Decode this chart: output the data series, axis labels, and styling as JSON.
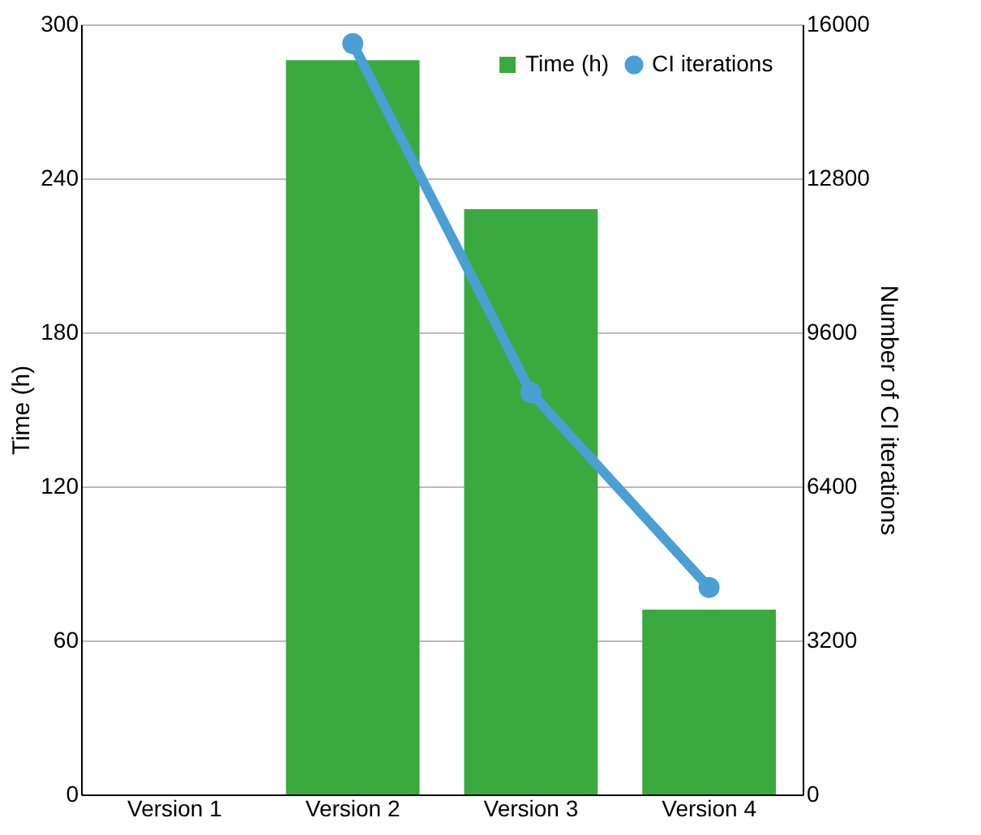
{
  "chart_data": {
    "type": "bar",
    "categories": [
      "Version 1",
      "Version 2",
      "Version 3",
      "Version 4"
    ],
    "series": [
      {
        "name": "Time (h)",
        "color": "#3aaa3f",
        "values": [
          null,
          286,
          228,
          72
        ]
      },
      {
        "name": "CI iterations",
        "type": "line",
        "axis": "y2",
        "color": "#4a9fd4",
        "values": [
          null,
          15600,
          8350,
          4300
        ]
      }
    ],
    "ylabel": "Time (h)",
    "y2label": "Number of CI iterations",
    "ylim": [
      0,
      300
    ],
    "yticks": [
      0,
      60,
      120,
      180,
      240,
      300
    ],
    "y2lim": [
      0,
      16000
    ],
    "y2ticks": [
      0,
      3200,
      6400,
      9600,
      12800,
      16000
    ],
    "grid": "y",
    "legend": "top right",
    "marker": "circle",
    "line_style": "solid"
  }
}
